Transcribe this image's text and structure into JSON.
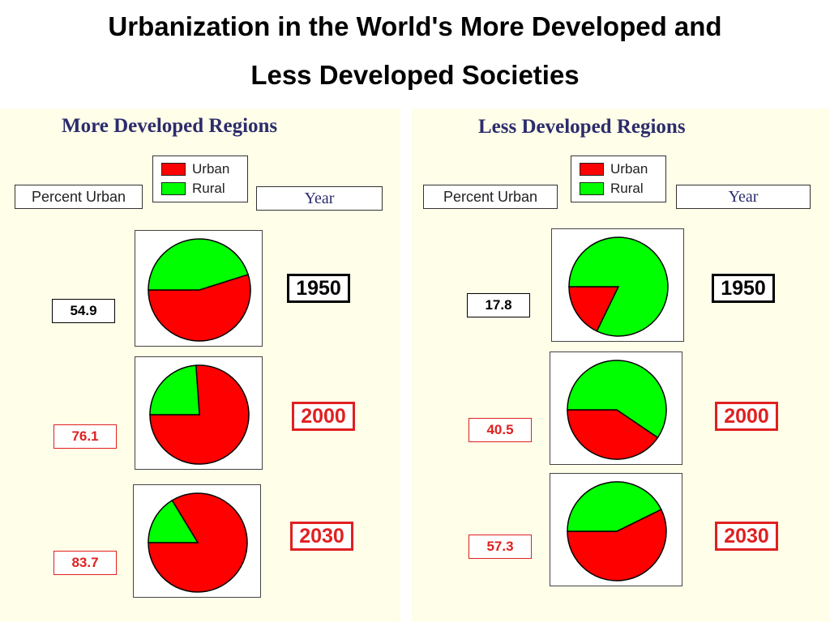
{
  "title_line1": "Urbanization in the World's More Developed and",
  "title_line2": "Less Developed Societies",
  "legend": {
    "urban": "Urban",
    "rural": "Rural"
  },
  "headers": {
    "percent": "Percent Urban",
    "year": "Year"
  },
  "colors": {
    "urban": "#ff0000",
    "rural": "#00ff00",
    "highlight": "#e02020",
    "base": "#000000"
  },
  "chart_data": [
    {
      "type": "pie",
      "title": "More Developed Regions",
      "series": [
        "Urban",
        "Rural"
      ],
      "rows": [
        {
          "year": "1950",
          "percent_label": "54.9",
          "urban": 54.9,
          "rural": 45.1,
          "highlight": false
        },
        {
          "year": "2000",
          "percent_label": "76.1",
          "urban": 76.1,
          "rural": 23.9,
          "highlight": true
        },
        {
          "year": "2030",
          "percent_label": "83.7",
          "urban": 83.7,
          "rural": 16.3,
          "highlight": true
        }
      ]
    },
    {
      "type": "pie",
      "title": "Less Developed Regions",
      "series": [
        "Urban",
        "Rural"
      ],
      "rows": [
        {
          "year": "1950",
          "percent_label": "17.8",
          "urban": 17.8,
          "rural": 82.2,
          "highlight": false
        },
        {
          "year": "2000",
          "percent_label": "40.5",
          "urban": 40.5,
          "rural": 59.5,
          "highlight": true
        },
        {
          "year": "2030",
          "percent_label": "57.3",
          "urban": 57.3,
          "rural": 42.7,
          "highlight": true
        }
      ]
    }
  ]
}
